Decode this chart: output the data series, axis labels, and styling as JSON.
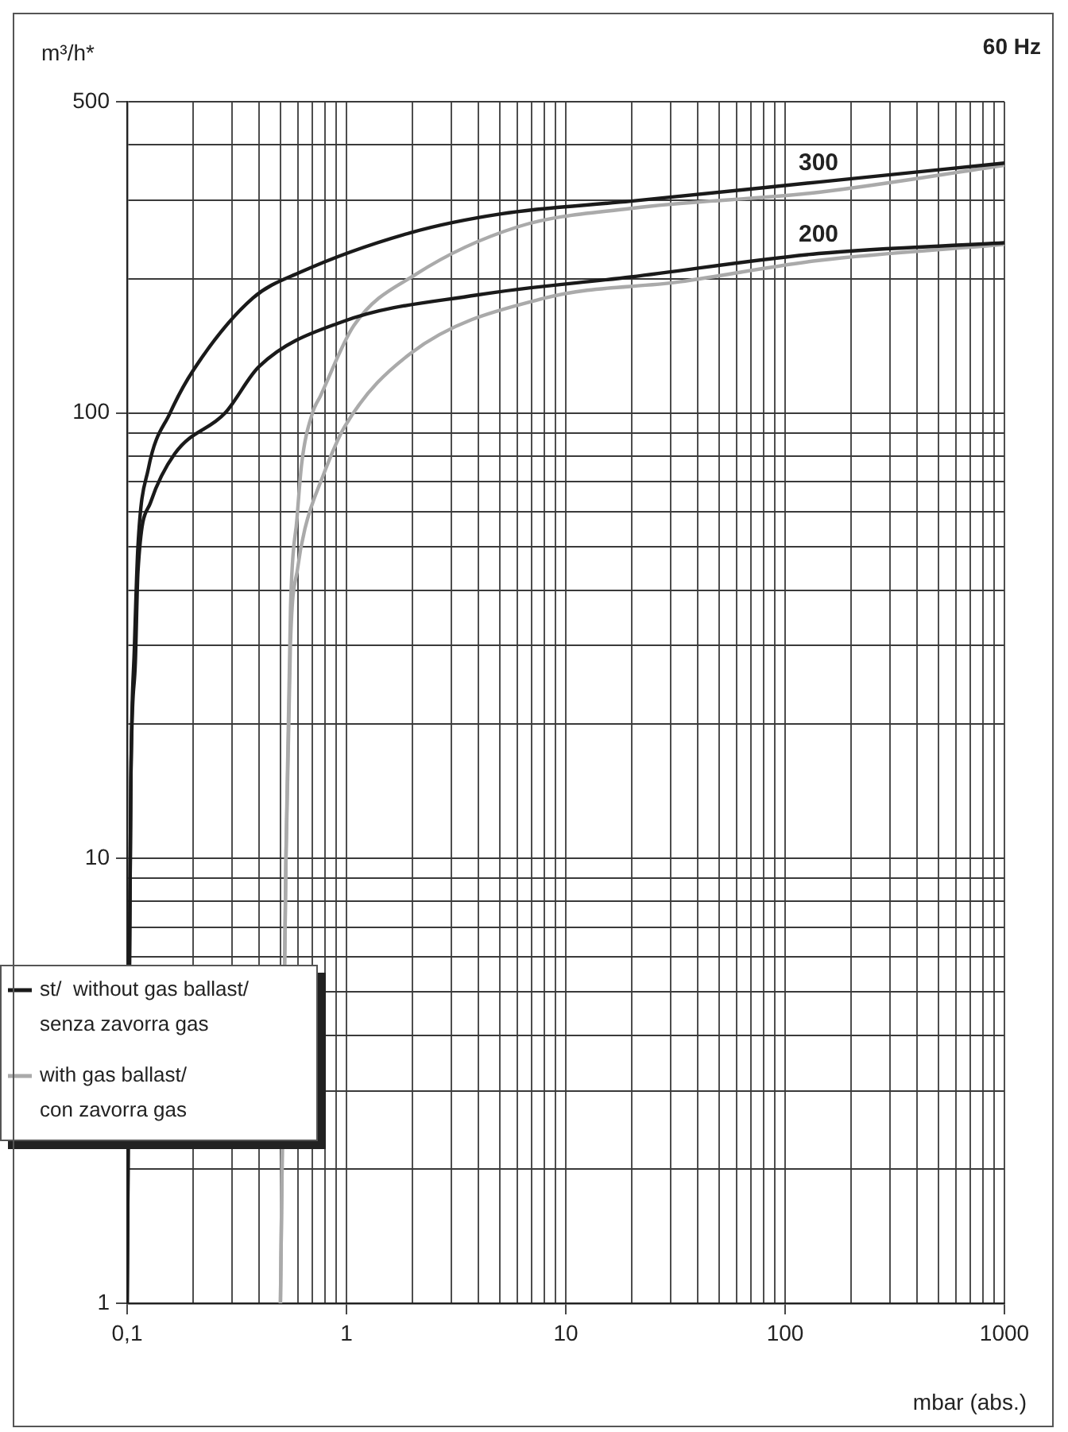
{
  "chart_data": {
    "type": "line",
    "title": "60 Hz",
    "xlabel": "mbar (abs.)",
    "ylabel": "m³/h*",
    "log": "xy",
    "grid": true,
    "legend": "bottom left",
    "xlim": [
      0.1,
      1000
    ],
    "ylim": [
      1,
      500
    ],
    "xticks": [
      {
        "value": 0.1,
        "label": "0,1"
      },
      {
        "value": 0.2,
        "label": null
      },
      {
        "value": 0.3,
        "label": null
      },
      {
        "value": 0.4,
        "label": null
      },
      {
        "value": 0.5,
        "label": null
      },
      {
        "value": 0.6,
        "label": null
      },
      {
        "value": 0.7,
        "label": null
      },
      {
        "value": 0.8,
        "label": null
      },
      {
        "value": 0.9,
        "label": null
      },
      1,
      {
        "value": 2,
        "label": null
      },
      {
        "value": 3,
        "label": null
      },
      {
        "value": 4,
        "label": null
      },
      {
        "value": 5,
        "label": null
      },
      {
        "value": 6,
        "label": null
      },
      {
        "value": 7,
        "label": null
      },
      {
        "value": 8,
        "label": null
      },
      {
        "value": 9,
        "label": null
      },
      10,
      {
        "value": 20,
        "label": null
      },
      {
        "value": 30,
        "label": null
      },
      {
        "value": 40,
        "label": null
      },
      {
        "value": 50,
        "label": null
      },
      {
        "value": 60,
        "label": null
      },
      {
        "value": 70,
        "label": null
      },
      {
        "value": 80,
        "label": null
      },
      {
        "value": 90,
        "label": null
      },
      100,
      {
        "value": 200,
        "label": null
      },
      {
        "value": 300,
        "label": null
      },
      {
        "value": 400,
        "label": null
      },
      {
        "value": 500,
        "label": null
      },
      {
        "value": 600,
        "label": null
      },
      {
        "value": 700,
        "label": null
      },
      {
        "value": 800,
        "label": null
      },
      {
        "value": 900,
        "label": null
      },
      1000
    ],
    "yticks": [
      1,
      {
        "value": 2,
        "label": null
      },
      {
        "value": 3,
        "label": null
      },
      {
        "value": 4,
        "label": null
      },
      {
        "value": 5,
        "label": null
      },
      {
        "value": 6,
        "label": null
      },
      {
        "value": 7,
        "label": null
      },
      {
        "value": 8,
        "label": null
      },
      {
        "value": 9,
        "label": null
      },
      10,
      {
        "value": 20,
        "label": null
      },
      {
        "value": 30,
        "label": null
      },
      {
        "value": 40,
        "label": null
      },
      {
        "value": 50,
        "label": null
      },
      {
        "value": 60,
        "label": null
      },
      {
        "value": 70,
        "label": null
      },
      {
        "value": 80,
        "label": null
      },
      {
        "value": 90,
        "label": null
      },
      100,
      {
        "value": 200,
        "label": null
      },
      {
        "value": 300,
        "label": null
      },
      {
        "value": 400,
        "label": null
      },
      500
    ],
    "series": [
      {
        "name": "st/  without gas ballast/\nsenza zavorra gas",
        "color": "#1a1a1a",
        "x": [
          0.1,
          0.104,
          0.108,
          0.112,
          0.125,
          0.157,
          0.201,
          0.374,
          0.616,
          1.96,
          5.07,
          19.8,
          142,
          1000
        ],
        "values": [
          1,
          15,
          30,
          50,
          75,
          100,
          125,
          181,
          207,
          254,
          280,
          299,
          330,
          364
        ]
      },
      {
        "color": "#1a1a1a",
        "x": [
          0.1,
          0.104,
          0.109,
          0.112,
          0.128,
          0.165,
          0.28,
          0.399,
          0.95,
          3.93,
          19.8,
          142,
          1000
        ],
        "values": [
          1,
          15,
          27.6,
          44,
          63,
          81,
          100,
          127,
          160,
          184,
          202,
          228,
          241
        ]
      },
      {
        "name": "with gas ballast/\ncon zavorra gas",
        "color": "#aaaaaa",
        "x": [
          0.5,
          0.53,
          0.556,
          0.595,
          0.625,
          0.7,
          0.76,
          1.08,
          2.08,
          6.07,
          19.8,
          142,
          1000
        ],
        "values": [
          1,
          10.3,
          36.7,
          58,
          77,
          100,
          109,
          157,
          205,
          262,
          288,
          313,
          360
        ]
      },
      {
        "color": "#aaaaaa",
        "x": [
          0.5,
          0.53,
          0.555,
          0.6,
          0.647,
          0.78,
          0.98,
          1.96,
          8.0,
          33,
          142,
          1000
        ],
        "values": [
          1,
          10,
          30,
          45,
          55,
          72,
          93,
          136,
          181,
          197,
          220,
          239
        ]
      }
    ],
    "annotations": [
      {
        "text": "300",
        "x": 142,
        "y": 330
      },
      {
        "text": "200",
        "x": 142,
        "y": 228
      }
    ]
  }
}
